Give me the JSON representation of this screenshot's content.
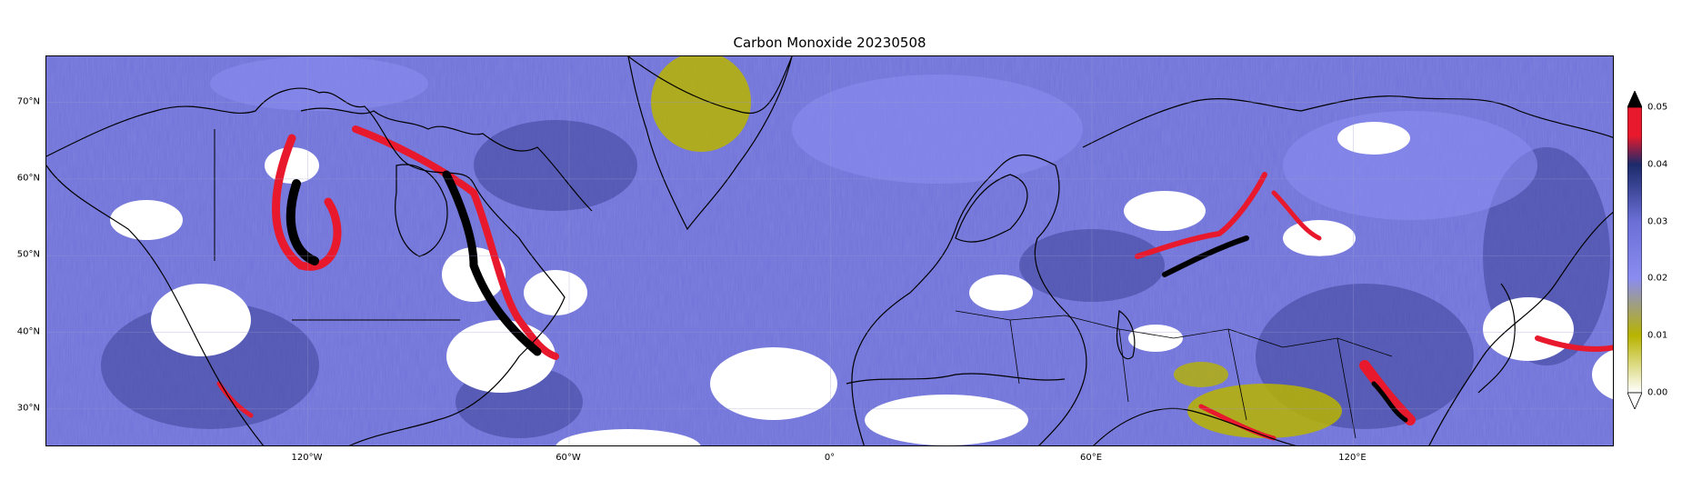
{
  "map": {
    "title": "Carbon Monoxide 20230508",
    "lat_ticks": [
      {
        "label": "70°N",
        "lat": 70
      },
      {
        "label": "60°N",
        "lat": 60
      },
      {
        "label": "50°N",
        "lat": 50
      },
      {
        "label": "40°N",
        "lat": 40
      },
      {
        "label": "30°N",
        "lat": 30
      }
    ],
    "lon_ticks": [
      {
        "label": "120°W",
        "lon": -120
      },
      {
        "label": "60°W",
        "lon": -60
      },
      {
        "label": "0°",
        "lon": 0
      },
      {
        "label": "60°E",
        "lon": 60
      },
      {
        "label": "120°E",
        "lon": 120
      }
    ],
    "lon_range": [
      -180,
      180
    ],
    "lat_range": [
      25,
      76
    ],
    "gridlines": true
  },
  "colorbar": {
    "ticks": [
      "0.00",
      "0.01",
      "0.02",
      "0.03",
      "0.04",
      "0.05"
    ],
    "range": [
      0.0,
      0.05
    ],
    "extend": "both",
    "colors": {
      "low": "#ffffff",
      "olive": "#b8b400",
      "light_blue": "#8a8cf0",
      "periwinkle": "#6b6fd6",
      "navy": "#1c2a6a",
      "red": "#e8192c",
      "high": "#000000"
    }
  }
}
